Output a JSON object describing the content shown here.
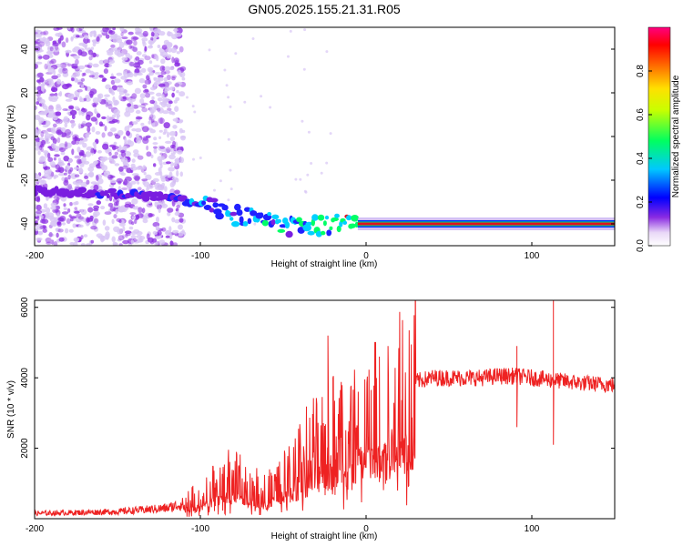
{
  "title": "GN05.2025.155.21.31.R05",
  "colors": {
    "snr_line": "#ee2222",
    "signal_ridge": "#e0101e",
    "noise": "#8a2be2",
    "noise_light": "#d8c6f5",
    "axis": "#000000"
  },
  "chart_data": [
    {
      "type": "heatmap",
      "title": "GN05.2025.155.21.31.R05",
      "xlabel": "Height of straight line (km)",
      "ylabel": "Frequency (Hz)",
      "xlim": [
        -200,
        150
      ],
      "ylim": [
        -50,
        50
      ],
      "x_ticks": [
        -200,
        -100,
        0,
        100
      ],
      "y_ticks": [
        -40,
        -20,
        0,
        20,
        40
      ],
      "grid": false,
      "colorbar": {
        "label": "Normalized spectral amplitude",
        "range": [
          0,
          1
        ],
        "ticks": [
          "0.0",
          "0.2",
          "0.4",
          "0.6",
          "0.8"
        ],
        "colormap": "rainbow (white-violet-blue-cyan-green-yellow-red-magenta)"
      },
      "signal_track": {
        "x": [
          -200,
          -150,
          -120,
          -100,
          -80,
          -60,
          -40,
          -20,
          0,
          50,
          100,
          150
        ],
        "frequency": [
          -25,
          -26,
          -28,
          -31,
          -36,
          -39,
          -42,
          -40,
          -40,
          -40,
          -40,
          -40
        ],
        "normalized_amplitude": [
          0.2,
          0.25,
          0.3,
          0.35,
          0.4,
          0.45,
          0.5,
          0.6,
          0.9,
          0.95,
          0.95,
          0.95
        ]
      },
      "noise_region": {
        "x_range": [
          -200,
          -110
        ],
        "frequency_range": [
          -50,
          50
        ],
        "normalized_amplitude": 0.1
      }
    },
    {
      "type": "line",
      "xlabel": "Height of straight line (km)",
      "ylabel": "SNR (10 * v/v)",
      "xlim": [
        -200,
        150
      ],
      "ylim": [
        0,
        6200
      ],
      "x_ticks": [
        -200,
        -100,
        0,
        100
      ],
      "y_ticks": [
        2000,
        4000,
        6000
      ],
      "grid": false,
      "series": [
        {
          "envelope_x": [
            -200,
            -150,
            -120,
            -100,
            -90,
            -80,
            -70,
            -60,
            -50,
            -40,
            -30,
            -20,
            -10,
            0,
            10,
            20,
            30,
            40,
            50,
            60,
            70,
            80,
            90,
            100,
            110,
            120,
            130,
            150
          ],
          "envelope_y": [
            150,
            200,
            300,
            550,
            900,
            1100,
            800,
            700,
            1000,
            1500,
            2000,
            2300,
            2600,
            2700,
            2800,
            3400,
            3900,
            4000,
            4000,
            4000,
            4000,
            4050,
            4050,
            4000,
            3950,
            3900,
            3850,
            3800
          ],
          "spikes": [
            {
              "x": -23,
              "y": 5200
            },
            {
              "x": -20,
              "y": 4000
            },
            {
              "x": 8,
              "y": 4600
            },
            {
              "x": 91,
              "y": 4900
            },
            {
              "x": 91,
              "y": 2600
            },
            {
              "x": 113,
              "y": 6200
            },
            {
              "x": 113,
              "y": 2100
            }
          ]
        }
      ]
    }
  ]
}
